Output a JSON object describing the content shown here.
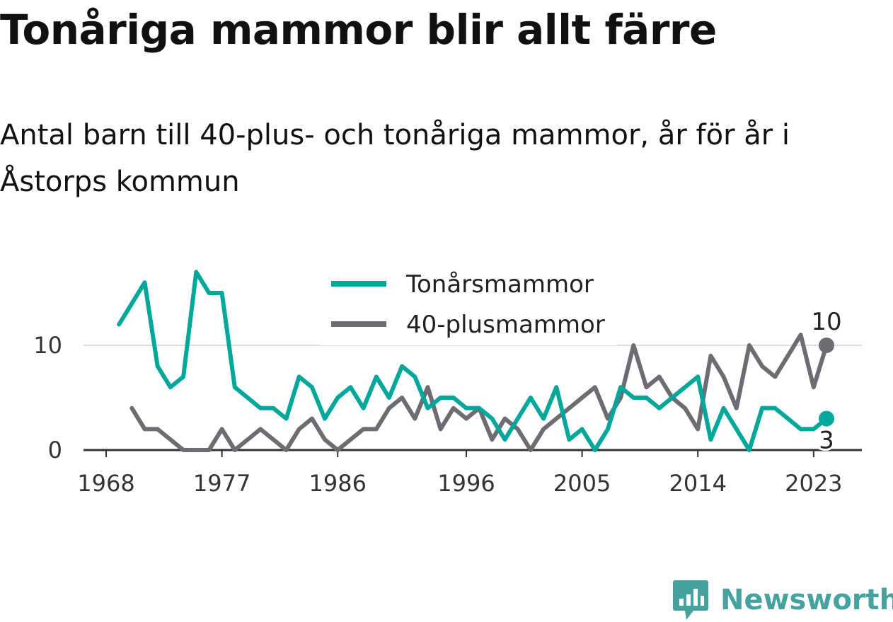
{
  "title": "Tonåriga mammor blir allt färre",
  "subtitle": "Antal barn till 40-plus- och tonåriga mammor, år för år i Åstorps kommun",
  "brand": {
    "name": "Newsworthy",
    "color": "#45a29e",
    "icon": "bar-chart-speech-bubble-icon"
  },
  "chart_data": {
    "type": "line",
    "x_ticks": [
      1968,
      1977,
      1986,
      1996,
      2005,
      2014,
      2023
    ],
    "y_ticks": [
      0,
      10
    ],
    "ylim": [
      0,
      17
    ],
    "xlim": [
      1968,
      2024
    ],
    "gridlines": "horizontal",
    "legend_position": "top-center",
    "series": [
      {
        "name": "Tonårsmammor",
        "color": "#00a79a",
        "x": [
          1969,
          1970,
          1971,
          1972,
          1973,
          1974,
          1975,
          1976,
          1977,
          1978,
          1979,
          1980,
          1981,
          1982,
          1983,
          1984,
          1985,
          1986,
          1987,
          1988,
          1989,
          1990,
          1991,
          1992,
          1993,
          1994,
          1995,
          1996,
          1997,
          1998,
          1999,
          2000,
          2001,
          2002,
          2003,
          2004,
          2005,
          2006,
          2007,
          2008,
          2009,
          2010,
          2011,
          2012,
          2013,
          2014,
          2015,
          2016,
          2017,
          2018,
          2019,
          2020,
          2021,
          2022,
          2023,
          2024
        ],
        "values": [
          12,
          14,
          16,
          8,
          6,
          7,
          17,
          15,
          15,
          6,
          5,
          4,
          4,
          3,
          7,
          6,
          3,
          5,
          6,
          4,
          7,
          5,
          8,
          7,
          4,
          5,
          5,
          4,
          4,
          3,
          1,
          3,
          5,
          3,
          6,
          1,
          2,
          0,
          2,
          6,
          5,
          5,
          4,
          5,
          6,
          7,
          1,
          4,
          2,
          0,
          4,
          4,
          3,
          2,
          2,
          3
        ],
        "end_label": "3"
      },
      {
        "name": "40-plusmammor",
        "color": "#6d6c72",
        "x": [
          1970,
          1971,
          1972,
          1973,
          1974,
          1975,
          1976,
          1977,
          1978,
          1979,
          1980,
          1981,
          1982,
          1983,
          1984,
          1985,
          1986,
          1987,
          1988,
          1989,
          1990,
          1991,
          1992,
          1993,
          1994,
          1995,
          1996,
          1997,
          1998,
          1999,
          2000,
          2001,
          2002,
          2003,
          2004,
          2005,
          2006,
          2007,
          2008,
          2009,
          2010,
          2011,
          2012,
          2013,
          2014,
          2015,
          2016,
          2017,
          2018,
          2019,
          2020,
          2021,
          2022,
          2023,
          2024
        ],
        "values": [
          4,
          2,
          2,
          1,
          0,
          0,
          0,
          2,
          0,
          1,
          2,
          1,
          0,
          2,
          3,
          1,
          0,
          1,
          2,
          2,
          4,
          5,
          3,
          6,
          2,
          4,
          3,
          4,
          1,
          3,
          2,
          0,
          2,
          3,
          4,
          5,
          6,
          3,
          5,
          10,
          6,
          7,
          5,
          4,
          2,
          9,
          7,
          4,
          10,
          8,
          7,
          9,
          11,
          6,
          10
        ],
        "end_label": "10"
      }
    ]
  }
}
